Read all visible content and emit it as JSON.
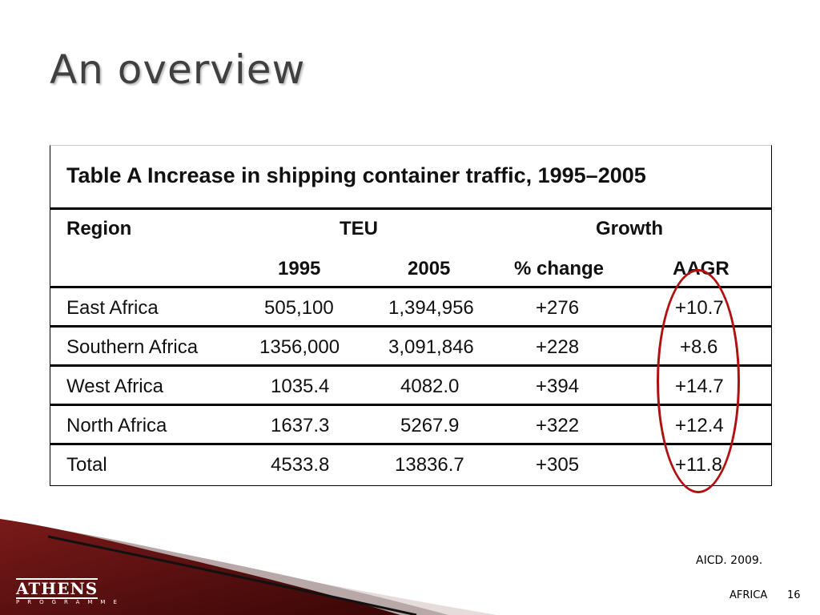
{
  "title": "An overview",
  "table": {
    "caption": "Table A Increase in shipping container traffic, 1995–2005",
    "header": {
      "region": "Region",
      "teu": "TEU",
      "growth": "Growth",
      "y1995": "1995",
      "y2005": "2005",
      "pct_change": "% change",
      "aagr": "AAGR"
    },
    "rows": [
      {
        "region": "East Africa",
        "y1995": "505,100",
        "y2005": "1,394,956",
        "pct_change": "+276",
        "aagr": "+10.7"
      },
      {
        "region": "Southern Africa",
        "y1995": "1356,000",
        "y2005": "3,091,846",
        "pct_change": "+228",
        "aagr": "+8.6"
      },
      {
        "region": "West Africa",
        "y1995": "1035.4",
        "y2005": "4082.0",
        "pct_change": "+394",
        "aagr": "+14.7"
      },
      {
        "region": "North Africa",
        "y1995": "1637.3",
        "y2005": "5267.9",
        "pct_change": "+322",
        "aagr": "+12.4"
      },
      {
        "region": "Total",
        "y1995": "4533.8",
        "y2005": "13836.7",
        "pct_change": "+305",
        "aagr": "+11.8"
      }
    ]
  },
  "source": "AICD. 2009.",
  "footer": {
    "section": "AFRICA",
    "page": "16"
  },
  "logo": {
    "name": "ATHENS",
    "tagline": "PROGRAMME"
  },
  "colors": {
    "highlight_circle": "#b01010",
    "brand_dark_red": "#5a0f0f",
    "title_gray": "#404040"
  }
}
